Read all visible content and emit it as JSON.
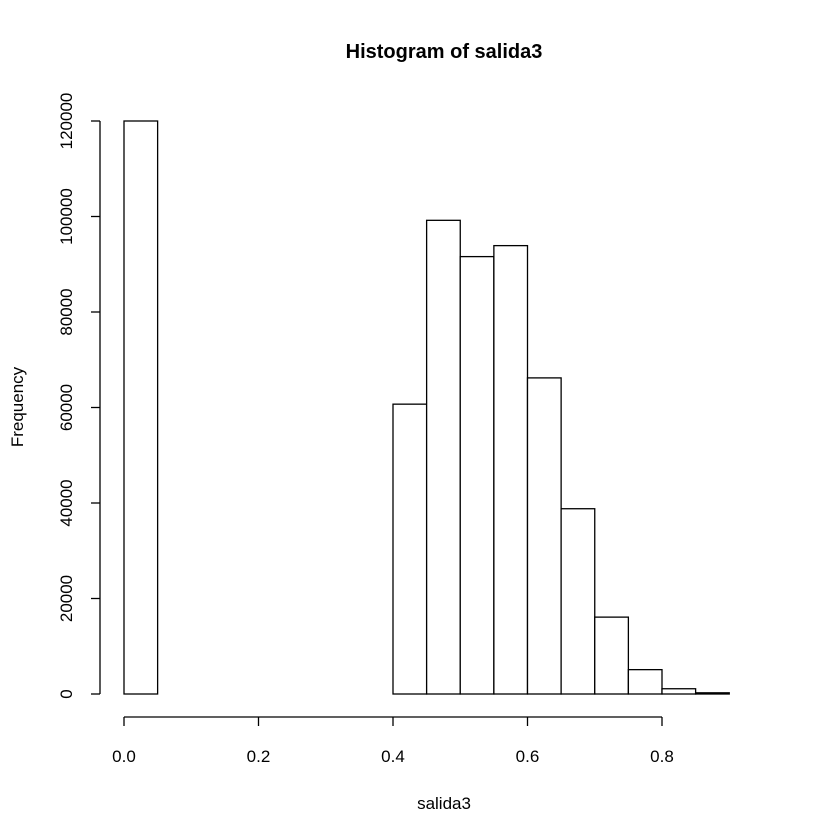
{
  "chart_data": {
    "type": "bar",
    "title": "Histogram of salida3",
    "xlabel": "salida3",
    "ylabel": "Frequency",
    "bin_width": 0.05,
    "bins": [
      {
        "start": 0.0,
        "end": 0.05,
        "count": 120000
      },
      {
        "start": 0.05,
        "end": 0.1,
        "count": 0
      },
      {
        "start": 0.1,
        "end": 0.15,
        "count": 0
      },
      {
        "start": 0.15,
        "end": 0.2,
        "count": 0
      },
      {
        "start": 0.2,
        "end": 0.25,
        "count": 0
      },
      {
        "start": 0.25,
        "end": 0.3,
        "count": 0
      },
      {
        "start": 0.3,
        "end": 0.35,
        "count": 0
      },
      {
        "start": 0.35,
        "end": 0.4,
        "count": 0
      },
      {
        "start": 0.4,
        "end": 0.45,
        "count": 60700
      },
      {
        "start": 0.45,
        "end": 0.5,
        "count": 99200
      },
      {
        "start": 0.5,
        "end": 0.55,
        "count": 91600
      },
      {
        "start": 0.55,
        "end": 0.6,
        "count": 93900
      },
      {
        "start": 0.6,
        "end": 0.65,
        "count": 66200
      },
      {
        "start": 0.65,
        "end": 0.7,
        "count": 38800
      },
      {
        "start": 0.7,
        "end": 0.75,
        "count": 16100
      },
      {
        "start": 0.75,
        "end": 0.8,
        "count": 5100
      },
      {
        "start": 0.8,
        "end": 0.85,
        "count": 1100
      },
      {
        "start": 0.85,
        "end": 0.9,
        "count": 250
      }
    ],
    "xlim": [
      0.0,
      0.95
    ],
    "ylim": [
      0,
      120000
    ],
    "x_ticks": [
      0.0,
      0.2,
      0.4,
      0.6,
      0.8
    ],
    "x_tick_labels": [
      "0.0",
      "0.2",
      "0.4",
      "0.6",
      "0.8"
    ],
    "y_ticks": [
      0,
      20000,
      40000,
      60000,
      80000,
      100000,
      120000
    ],
    "y_tick_labels": [
      "0",
      "20000",
      "40000",
      "60000",
      "80000",
      "100000",
      "120000"
    ],
    "grid": false,
    "bar_fill": "#ffffff",
    "bar_stroke": "#000000"
  }
}
